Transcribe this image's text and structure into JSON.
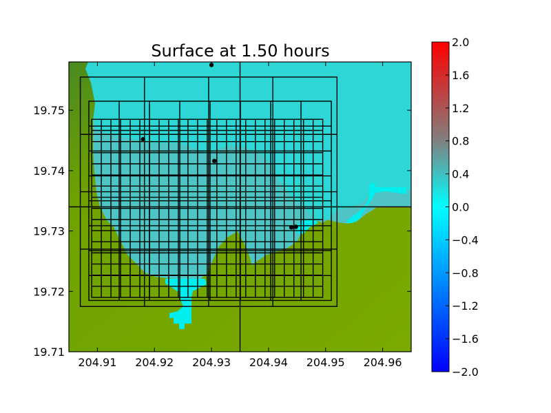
{
  "chart_data": {
    "type": "heatmap",
    "title": "Surface at 1.50 hours",
    "xlabel": "",
    "ylabel": "",
    "xlim": [
      204.905,
      204.965
    ],
    "ylim": [
      19.71,
      19.758
    ],
    "x_ticks": [
      204.91,
      204.92,
      204.93,
      204.94,
      204.95,
      204.96
    ],
    "x_tick_labels": [
      "204.91",
      "204.92",
      "204.93",
      "204.94",
      "204.95",
      "204.96"
    ],
    "y_ticks": [
      19.71,
      19.72,
      19.73,
      19.74,
      19.75
    ],
    "y_tick_labels": [
      "19.71",
      "19.72",
      "19.73",
      "19.74",
      "19.75"
    ],
    "colorbar": {
      "range": [
        -2.0,
        2.0
      ],
      "ticks": [
        2.0,
        1.6,
        1.2,
        0.8,
        0.4,
        0.0,
        -0.4,
        -0.8,
        -1.2,
        -1.6,
        -2.0
      ],
      "tick_labels": [
        "2.0",
        "1.6",
        "1.2",
        "0.8",
        "0.4",
        "0.0",
        "−0.4",
        "−0.8",
        "−1.2",
        "−1.6",
        "−2.0"
      ],
      "colors": [
        "#0000ff",
        "#00ffff",
        "#808080",
        "#ff0000"
      ]
    },
    "colors": {
      "water_deep": "#2ed6d6",
      "water_bay": "#4fc4c4",
      "land": "#7aaa00",
      "land_dark": "#4c8a1e",
      "dry_cells": "#00f0f0"
    },
    "patch_boundaries": {
      "level1_x": [
        204.935
      ],
      "level1_y": [
        19.734
      ],
      "level2": {
        "xlim": [
          204.907,
          204.952
        ],
        "ylim": [
          19.7175,
          19.7555
        ]
      },
      "level3": {
        "xlim": [
          204.9085,
          204.951
        ],
        "ylim": [
          19.7185,
          19.7515
        ]
      },
      "level4": {
        "xlim": [
          204.909,
          204.9495
        ],
        "ylim": [
          19.719,
          19.7485
        ]
      }
    },
    "gauges": [
      {
        "x": 204.93,
        "y": 19.7575
      },
      {
        "x": 204.918,
        "y": 19.7452
      },
      {
        "x": 204.9305,
        "y": 19.7416
      },
      {
        "x": 204.944,
        "y": 19.7306
      },
      {
        "x": 204.9448,
        "y": 19.7307
      }
    ],
    "grid": false
  }
}
